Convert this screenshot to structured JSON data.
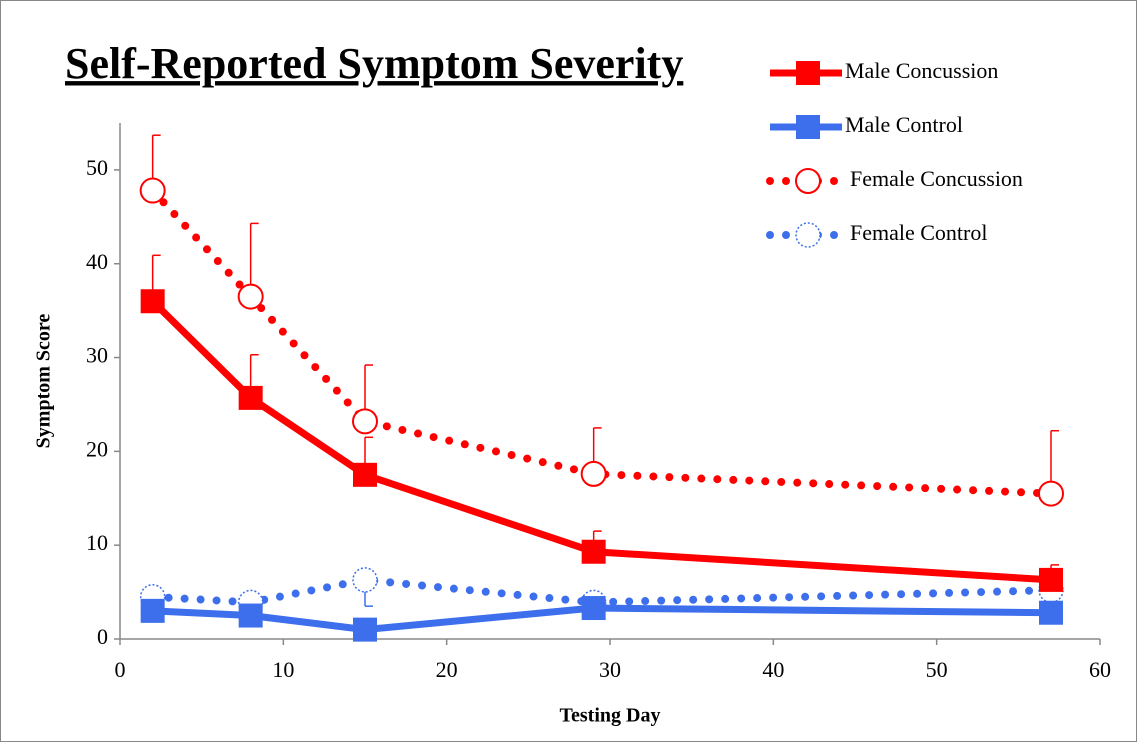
{
  "chart_data": {
    "type": "line",
    "title": "Self-Reported Symptom Severity",
    "x_label": "Testing Day",
    "y_label": "Symptom Score",
    "x": [
      2,
      8,
      15,
      29,
      57
    ],
    "xlim": [
      0,
      60
    ],
    "xticks": [
      0,
      10,
      20,
      30,
      40,
      50,
      60
    ],
    "ylim": [
      0,
      55
    ],
    "yticks": [
      0,
      10,
      20,
      30,
      40,
      50
    ],
    "legend": "top-right",
    "series": [
      {
        "name": "Male Concussion",
        "color": "#ff0000",
        "line_style": "solid",
        "marker": "square",
        "values": [
          36,
          25.7,
          17.5,
          9.3,
          6.3
        ],
        "errors": [
          4.9,
          4.6,
          4,
          2.2,
          1.6
        ],
        "error_side": "upper"
      },
      {
        "name": "Male Control",
        "color": "#3d6fec",
        "line_style": "solid",
        "marker": "square",
        "values": [
          3,
          2.5,
          1,
          3.3,
          2.8
        ],
        "errors": [
          null,
          null,
          null,
          null,
          null
        ],
        "error_side": "upper"
      },
      {
        "name": "Female Concussion",
        "color": "#ff0000",
        "line_style": "dotted",
        "marker": "circle",
        "values": [
          47.8,
          36.5,
          23.2,
          17.6,
          15.5
        ],
        "errors": [
          5.9,
          7.8,
          6,
          4.9,
          6.7
        ],
        "error_side": "upper"
      },
      {
        "name": "Female Control",
        "color": "#3d6fec",
        "line_style": "dotted",
        "marker": "dotted-circle",
        "values": [
          4.5,
          3.9,
          6.3,
          3.9,
          5.2
        ],
        "errors": [
          null,
          null,
          2.8,
          null,
          null
        ],
        "error_side": "lower"
      }
    ]
  }
}
